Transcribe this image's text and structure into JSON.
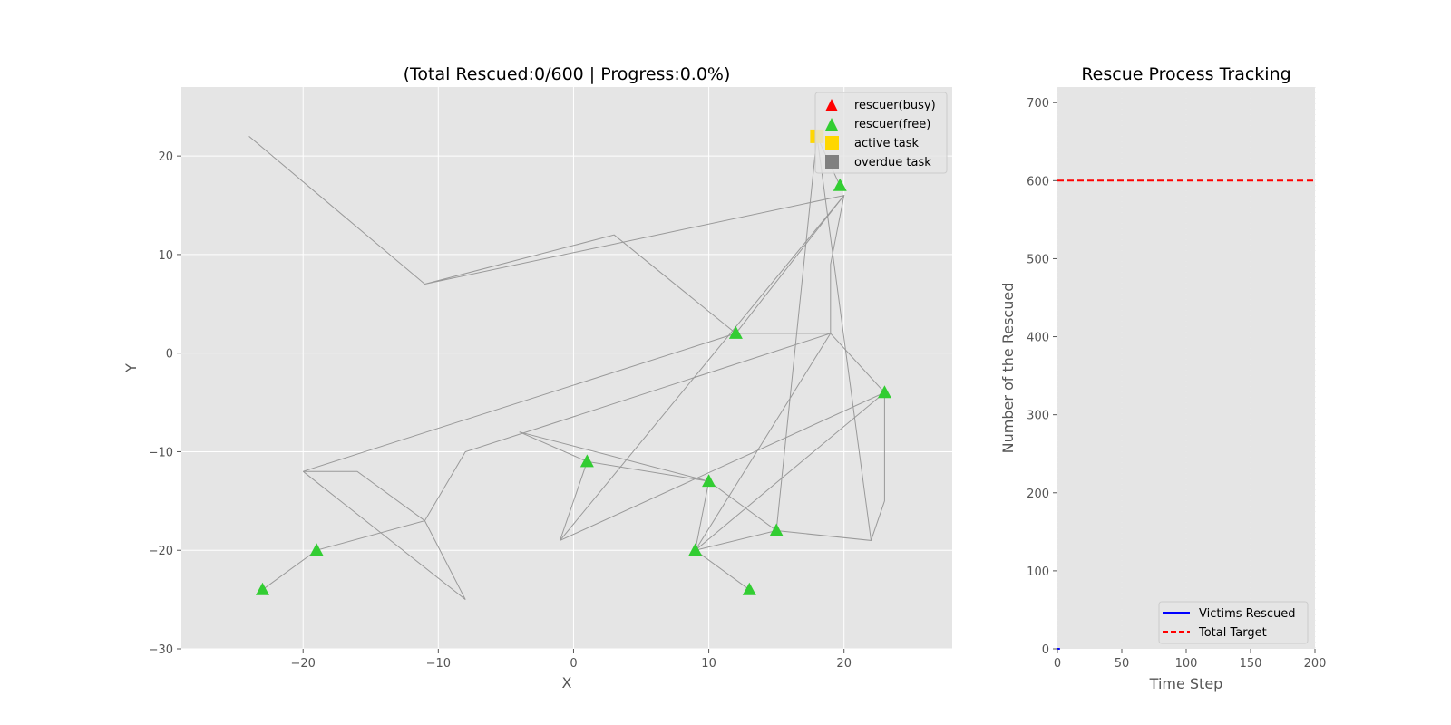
{
  "map_chart": {
    "type": "scatter",
    "title": "(Total Rescued:0/600 | Progress:0.0%)",
    "xlabel": "X",
    "ylabel": "Y",
    "xlim": [
      -29,
      28
    ],
    "ylim": [
      -30,
      27
    ],
    "xticks": [
      -20,
      -10,
      0,
      10,
      20
    ],
    "yticks": [
      -30,
      -20,
      -10,
      0,
      10,
      20
    ],
    "grid": true,
    "legend_position": "top-right",
    "legend": [
      {
        "label": "rescuer(busy)",
        "marker": "triangle",
        "color": "#ff0000"
      },
      {
        "label": "rescuer(free)",
        "marker": "triangle",
        "color": "#32cd32"
      },
      {
        "label": "active task",
        "marker": "square",
        "color": "#ffd700"
      },
      {
        "label": "overdue task",
        "marker": "square",
        "color": "#808080"
      }
    ],
    "route_color": "#999999",
    "rescuers_free": [
      {
        "x": 19.7,
        "y": 17
      },
      {
        "x": 12,
        "y": 2
      },
      {
        "x": 23,
        "y": -4
      },
      {
        "x": 1,
        "y": -11
      },
      {
        "x": 10,
        "y": -13
      },
      {
        "x": 15,
        "y": -18
      },
      {
        "x": 9,
        "y": -20
      },
      {
        "x": 13,
        "y": -24
      },
      {
        "x": -19,
        "y": -20
      },
      {
        "x": -23,
        "y": -24
      }
    ],
    "active_tasks": [
      {
        "x": 18,
        "y": 22
      }
    ],
    "routes": [
      [
        [
          -24,
          22
        ],
        [
          -11,
          7
        ],
        [
          3,
          12
        ],
        [
          12,
          2
        ],
        [
          19,
          2
        ],
        [
          19,
          9
        ],
        [
          20,
          16
        ],
        [
          -11,
          7
        ]
      ],
      [
        [
          20,
          16
        ],
        [
          12,
          2
        ],
        [
          -20,
          -12
        ],
        [
          -16,
          -12
        ],
        [
          -11,
          -17
        ],
        [
          -8,
          -25
        ],
        [
          -20,
          -12
        ]
      ],
      [
        [
          20,
          16
        ],
        [
          -1,
          -19
        ],
        [
          1,
          -11
        ],
        [
          10,
          -13
        ],
        [
          15,
          -18
        ],
        [
          22,
          -19
        ],
        [
          23,
          -15
        ],
        [
          23,
          -4
        ],
        [
          -1,
          -19
        ]
      ],
      [
        [
          19,
          2
        ],
        [
          -8,
          -10
        ],
        [
          -11,
          -17
        ],
        [
          -19,
          -20
        ],
        [
          -23,
          -24
        ]
      ],
      [
        [
          19,
          2
        ],
        [
          23,
          -4
        ],
        [
          9,
          -20
        ],
        [
          13,
          -24
        ]
      ],
      [
        [
          19,
          2
        ],
        [
          9,
          -20
        ],
        [
          15,
          -18
        ],
        [
          18,
          22
        ],
        [
          22,
          -19
        ]
      ],
      [
        [
          -4,
          -8
        ],
        [
          10,
          -13
        ],
        [
          9,
          -20
        ]
      ],
      [
        [
          -4,
          -8
        ],
        [
          1,
          -11
        ]
      ],
      [
        [
          19.7,
          17
        ],
        [
          18,
          22
        ]
      ]
    ]
  },
  "tracking_chart": {
    "type": "line",
    "title": "Rescue Process Tracking",
    "xlabel": "Time Step",
    "ylabel": "Number of the Rescued",
    "xlim": [
      0,
      200
    ],
    "ylim": [
      0,
      720
    ],
    "xticks": [
      0,
      50,
      100,
      150,
      200
    ],
    "yticks": [
      0,
      100,
      200,
      300,
      400,
      500,
      600,
      700
    ],
    "legend_position": "bottom-right",
    "series": [
      {
        "name": "Victims Rescued",
        "color": "#0000ff",
        "style": "solid",
        "x": [
          0,
          2
        ],
        "y": [
          0,
          0
        ]
      },
      {
        "name": "Total Target",
        "color": "#ff0000",
        "style": "dashed",
        "x": [
          0,
          200
        ],
        "y": [
          600,
          600
        ]
      }
    ]
  }
}
